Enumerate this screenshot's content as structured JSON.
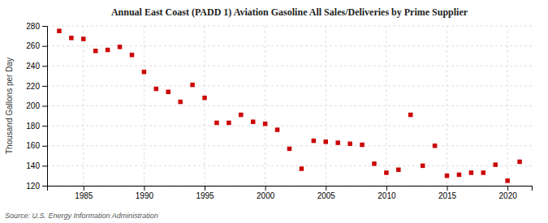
{
  "chart_data": {
    "type": "scatter",
    "title": "Annual East Coast (PADD 1) Aviation Gasoline All Sales/Deliveries by Prime Supplier",
    "ylabel": "Thousand Gallons per Day",
    "source": "Source: U.S. Energy Information Administration",
    "color": "#cc0000",
    "marker": "square",
    "grid": true,
    "xlim": [
      1982,
      2022
    ],
    "xticks": [
      1985,
      1990,
      1995,
      2000,
      2005,
      2010,
      2015,
      2020
    ],
    "ylim": [
      120,
      280
    ],
    "yticks": [
      120,
      140,
      160,
      180,
      200,
      220,
      240,
      260,
      280
    ],
    "x": [
      1983,
      1984,
      1985,
      1986,
      1987,
      1988,
      1989,
      1990,
      1991,
      1992,
      1993,
      1994,
      1995,
      1996,
      1997,
      1998,
      1999,
      2000,
      2001,
      2002,
      2003,
      2004,
      2005,
      2006,
      2007,
      2008,
      2009,
      2010,
      2011,
      2012,
      2013,
      2014,
      2015,
      2016,
      2017,
      2018,
      2019,
      2020,
      2021
    ],
    "values": [
      275,
      268,
      267,
      255,
      256,
      259,
      251,
      234,
      217,
      214,
      204,
      221,
      208,
      183,
      183,
      191,
      184,
      182,
      176,
      157,
      137,
      165,
      164,
      163,
      162,
      161,
      142,
      133,
      136,
      191,
      140,
      160,
      130,
      131,
      133,
      133,
      141,
      125,
      144
    ]
  }
}
